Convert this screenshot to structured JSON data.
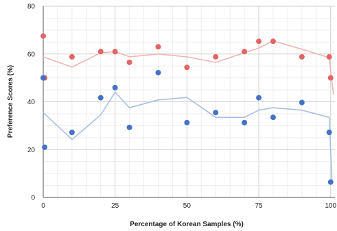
{
  "chart_data": {
    "type": "scatter",
    "xlabel": "Percentage of Korean Samples (%)",
    "ylabel": "Preference Scores (%)",
    "xlim": [
      0,
      101.5
    ],
    "ylim": [
      0,
      80
    ],
    "x_ticks": [
      0,
      25,
      50,
      75,
      100
    ],
    "y_ticks": [
      0,
      20,
      40,
      60,
      80
    ],
    "grid": true,
    "legend": "none",
    "series": [
      {
        "color": "#e06666",
        "trend_color": "#f0b4b4",
        "points": [
          {
            "x": 0,
            "y": 67.5
          },
          {
            "x": 0,
            "y": 50
          },
          {
            "x": 0.5,
            "y": 50
          },
          {
            "x": 10,
            "y": 58.8
          },
          {
            "x": 20,
            "y": 61
          },
          {
            "x": 25,
            "y": 61
          },
          {
            "x": 30,
            "y": 56.5
          },
          {
            "x": 40,
            "y": 63
          },
          {
            "x": 50,
            "y": 54.4
          },
          {
            "x": 60,
            "y": 58.8
          },
          {
            "x": 70,
            "y": 61
          },
          {
            "x": 75,
            "y": 65.3
          },
          {
            "x": 80,
            "y": 65.3
          },
          {
            "x": 90,
            "y": 58.8
          },
          {
            "x": 99.5,
            "y": 58.8
          },
          {
            "x": 100,
            "y": 50
          }
        ],
        "trend": [
          {
            "x": 0,
            "y": 58.8
          },
          {
            "x": 10,
            "y": 54.5
          },
          {
            "x": 20,
            "y": 60.5
          },
          {
            "x": 25,
            "y": 61
          },
          {
            "x": 30,
            "y": 58.8
          },
          {
            "x": 40,
            "y": 60
          },
          {
            "x": 50,
            "y": 58.8
          },
          {
            "x": 60,
            "y": 56.5
          },
          {
            "x": 70,
            "y": 60.5
          },
          {
            "x": 75,
            "y": 62.5
          },
          {
            "x": 80,
            "y": 65.5
          },
          {
            "x": 90,
            "y": 62
          },
          {
            "x": 99.5,
            "y": 58.5
          },
          {
            "x": 101,
            "y": 43
          }
        ]
      },
      {
        "color": "#4472c4",
        "trend_color": "#a9bfe3",
        "points": [
          {
            "x": 0,
            "y": 50
          },
          {
            "x": 0.5,
            "y": 21
          },
          {
            "x": 10,
            "y": 27.2
          },
          {
            "x": 20,
            "y": 41.7
          },
          {
            "x": 25,
            "y": 45.9
          },
          {
            "x": 30,
            "y": 29.3
          },
          {
            "x": 40,
            "y": 52.2
          },
          {
            "x": 50,
            "y": 31.3
          },
          {
            "x": 60,
            "y": 35.5
          },
          {
            "x": 70,
            "y": 31.3
          },
          {
            "x": 75,
            "y": 41.7
          },
          {
            "x": 80,
            "y": 33.5
          },
          {
            "x": 90,
            "y": 39.7
          },
          {
            "x": 99.5,
            "y": 27.2
          },
          {
            "x": 100,
            "y": 6.4
          }
        ],
        "trend": [
          {
            "x": 0,
            "y": 35.5
          },
          {
            "x": 10,
            "y": 24.2
          },
          {
            "x": 20,
            "y": 34.5
          },
          {
            "x": 25,
            "y": 44
          },
          {
            "x": 30,
            "y": 37.5
          },
          {
            "x": 40,
            "y": 40.8
          },
          {
            "x": 50,
            "y": 41.8
          },
          {
            "x": 60,
            "y": 33.5
          },
          {
            "x": 70,
            "y": 33.5
          },
          {
            "x": 75,
            "y": 36.5
          },
          {
            "x": 80,
            "y": 37.5
          },
          {
            "x": 90,
            "y": 36.5
          },
          {
            "x": 99.5,
            "y": 33.5
          },
          {
            "x": 100.5,
            "y": 6.4
          }
        ]
      }
    ]
  }
}
